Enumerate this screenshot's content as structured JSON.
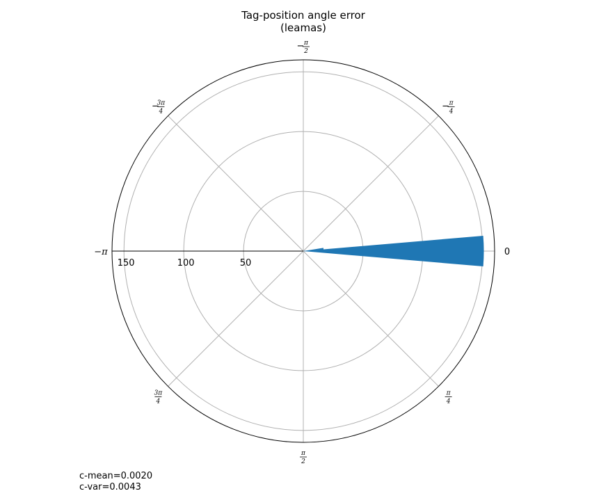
{
  "chart_data": {
    "type": "polar-histogram",
    "title": "Tag-position angle error",
    "subtitle": "(leamas)",
    "theta_direction": "clockwise",
    "theta_zero": "east",
    "angular_ticks": [
      {
        "angle": 0,
        "label_text": "0"
      },
      {
        "angle": 0.7853981634,
        "num": "π",
        "den": "4",
        "sign": ""
      },
      {
        "angle": 1.5707963268,
        "num": "π",
        "den": "2",
        "sign": ""
      },
      {
        "angle": 2.3561944902,
        "num": "3π",
        "den": "4",
        "sign": ""
      },
      {
        "angle": 3.1415926536,
        "label_main": "−π"
      },
      {
        "angle": -2.3561944902,
        "num": "3π",
        "den": "4",
        "sign": "−"
      },
      {
        "angle": -1.5707963268,
        "num": "π",
        "den": "2",
        "sign": "−"
      },
      {
        "angle": -0.7853981634,
        "num": "π",
        "den": "4",
        "sign": "−"
      }
    ],
    "radial_ticks": [
      50,
      100,
      150
    ],
    "rlim": [
      0,
      160
    ],
    "bars": [
      {
        "theta_start": -0.085,
        "theta_end": 0.085,
        "value": 151
      },
      {
        "theta_start": -0.16,
        "theta_end": 0.04,
        "value": 17
      }
    ],
    "color": "#1f77b4",
    "grid": true
  },
  "stats": {
    "c_mean": "c-mean=0.0020",
    "c_var": "c-var=0.0043"
  }
}
